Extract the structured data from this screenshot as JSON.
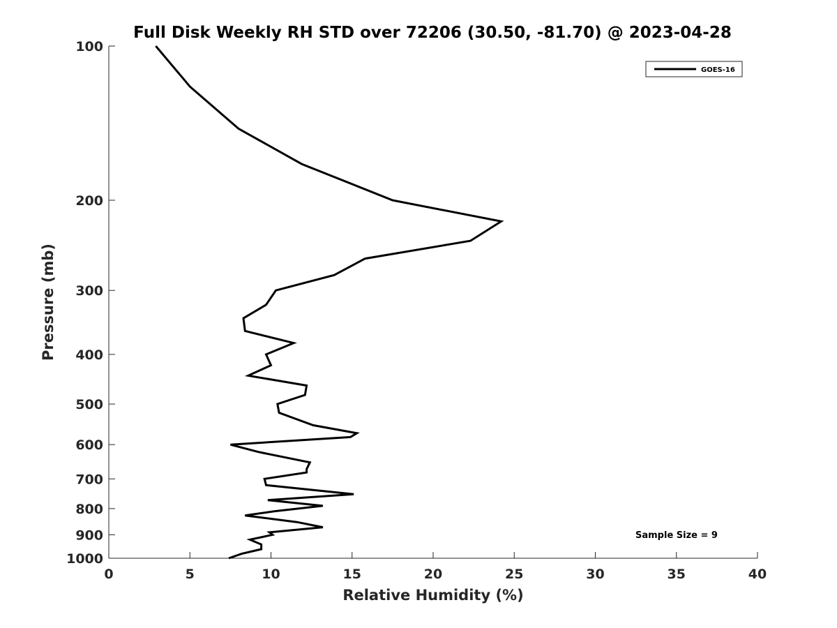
{
  "chart_data": {
    "type": "line",
    "title": "Full Disk Weekly RH STD over 72206 (30.50, -81.70) @ 2023-04-28",
    "xlabel": "Relative Humidity (%)",
    "ylabel": "Pressure (mb)",
    "xlim": [
      0,
      40
    ],
    "ylim": [
      100,
      1000
    ],
    "y_scale": "log",
    "y_reversed": true,
    "x_ticks": [
      0,
      5,
      10,
      15,
      20,
      25,
      30,
      35,
      40
    ],
    "y_ticks": [
      100,
      200,
      300,
      400,
      500,
      600,
      700,
      800,
      900,
      1000
    ],
    "grid": false,
    "legend_position": "top-right",
    "series": [
      {
        "name": "GOES-16",
        "color": "#000000",
        "points": [
          [
            2.9,
            100
          ],
          [
            5.0,
            120
          ],
          [
            8.0,
            145
          ],
          [
            11.9,
            170
          ],
          [
            17.5,
            200
          ],
          [
            24.2,
            220
          ],
          [
            22.3,
            240
          ],
          [
            15.8,
            260
          ],
          [
            13.9,
            280
          ],
          [
            10.3,
            300
          ],
          [
            9.7,
            320
          ],
          [
            8.3,
            340
          ],
          [
            8.4,
            360
          ],
          [
            11.4,
            380
          ],
          [
            9.7,
            400
          ],
          [
            10.0,
            420
          ],
          [
            8.6,
            440
          ],
          [
            12.2,
            460
          ],
          [
            12.1,
            480
          ],
          [
            10.4,
            500
          ],
          [
            10.5,
            520
          ],
          [
            12.6,
            550
          ],
          [
            15.3,
            570
          ],
          [
            14.9,
            580
          ],
          [
            7.5,
            600
          ],
          [
            9.2,
            620
          ],
          [
            12.4,
            650
          ],
          [
            12.2,
            670
          ],
          [
            12.2,
            680
          ],
          [
            9.6,
            700
          ],
          [
            9.7,
            720
          ],
          [
            15.1,
            750
          ],
          [
            9.8,
            770
          ],
          [
            13.2,
            790
          ],
          [
            10.2,
            810
          ],
          [
            8.4,
            825
          ],
          [
            11.6,
            850
          ],
          [
            13.2,
            870
          ],
          [
            9.9,
            890
          ],
          [
            10.1,
            900
          ],
          [
            8.7,
            920
          ],
          [
            9.4,
            940
          ],
          [
            9.4,
            960
          ],
          [
            8.2,
            980
          ],
          [
            7.4,
            1000
          ]
        ]
      }
    ],
    "annotation": "Sample Size = 9"
  }
}
